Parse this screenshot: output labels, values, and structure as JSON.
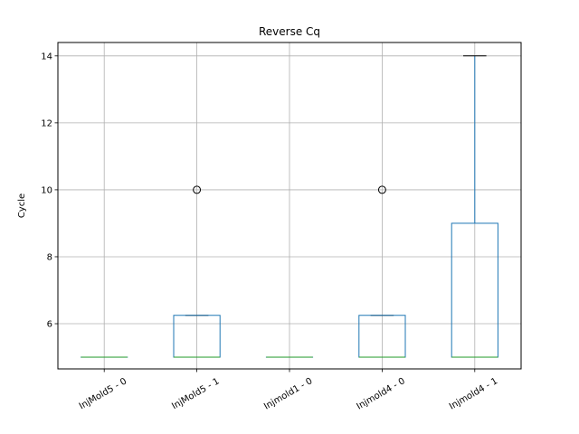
{
  "chart_data": {
    "type": "box",
    "title": "Reverse Cq",
    "xlabel": "",
    "ylabel": "Cycle",
    "ylim": [
      4.65,
      14.4
    ],
    "yticks": [
      6,
      8,
      10,
      12,
      14
    ],
    "grid": true,
    "colors": {
      "box": "#1f77b4",
      "median": "#2ca02c",
      "whisker_cap": "#000000",
      "flier": "#000000",
      "grid": "#b0b0b0"
    },
    "categories": [
      "InjMold5 - 0",
      "InjMold5 - 1",
      "Injmold1 - 0",
      "Injmold4 - 0",
      "Injmold4 - 1"
    ],
    "boxes": [
      {
        "category": "InjMold5 - 0",
        "whislo": 5,
        "q1": 5,
        "median": 5,
        "q3": 5,
        "whishi": 5,
        "fliers": []
      },
      {
        "category": "InjMold5 - 1",
        "whislo": 5,
        "q1": 5,
        "median": 5,
        "q3": 6.25,
        "whishi": 6.25,
        "fliers": [
          10
        ]
      },
      {
        "category": "Injmold1 - 0",
        "whislo": 5,
        "q1": 5,
        "median": 5,
        "q3": 5,
        "whishi": 5,
        "fliers": []
      },
      {
        "category": "Injmold4 - 0",
        "whislo": 5,
        "q1": 5,
        "median": 5,
        "q3": 6.25,
        "whishi": 6.25,
        "fliers": [
          10
        ]
      },
      {
        "category": "Injmold4 - 1",
        "whislo": 5,
        "q1": 5,
        "median": 5,
        "q3": 9,
        "whishi": 14,
        "fliers": []
      }
    ]
  }
}
